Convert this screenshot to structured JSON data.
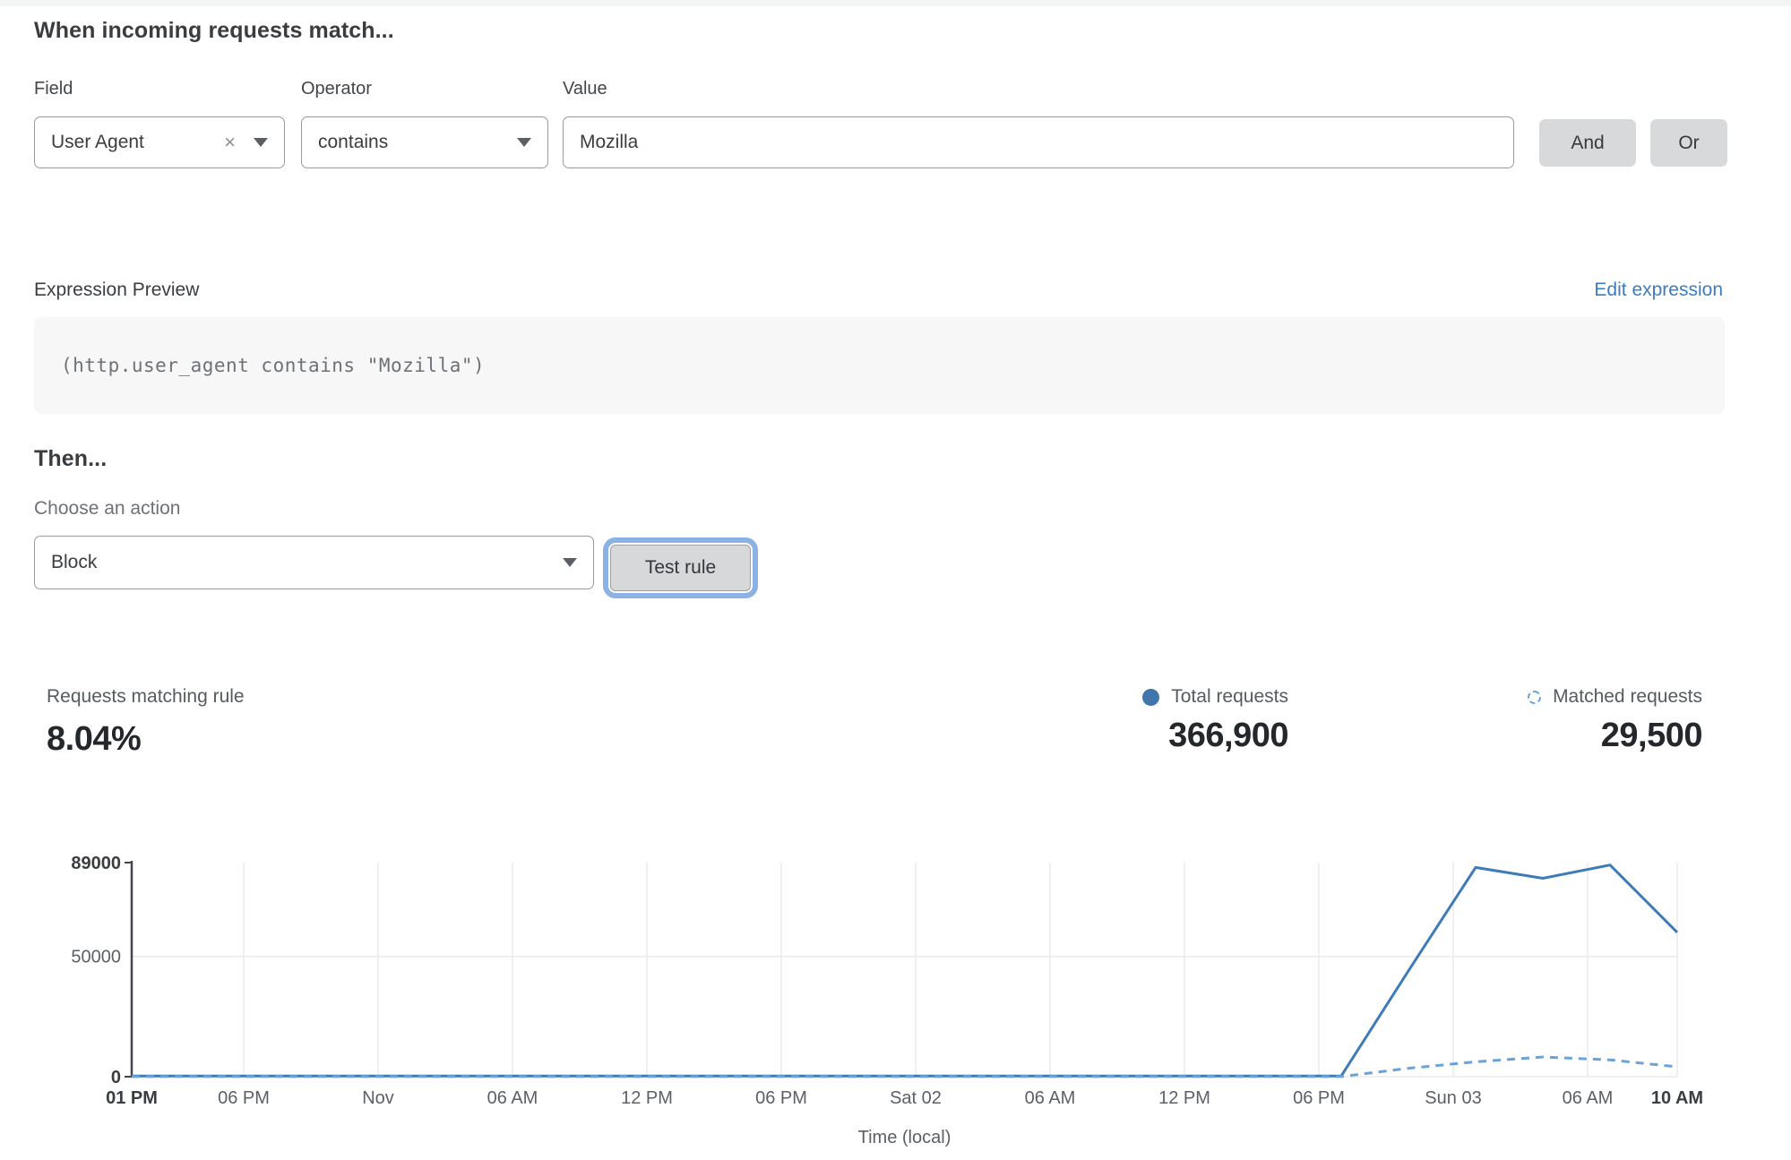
{
  "rule_builder": {
    "heading": "When incoming requests match...",
    "field": {
      "label": "Field",
      "selected": "User Agent",
      "clear_icon": "×"
    },
    "operator": {
      "label": "Operator",
      "selected": "contains"
    },
    "value": {
      "label": "Value",
      "text": "Mozilla"
    },
    "and_button": "And",
    "or_button": "Or"
  },
  "expression_preview": {
    "label": "Expression Preview",
    "edit_link": "Edit expression",
    "code": "(http.user_agent contains \"Mozilla\")"
  },
  "action_section": {
    "heading": "Then...",
    "choose_label": "Choose an action",
    "selected_action": "Block",
    "test_button": "Test rule"
  },
  "stats": {
    "matching_label": "Requests matching rule",
    "matching_value": "8.04%",
    "total_label": "Total requests",
    "total_value": "366,900",
    "matched_label": "Matched requests",
    "matched_value": "29,500"
  },
  "colors": {
    "total_line": "#3d7cb8",
    "matched_line": "#6ba3d9",
    "link_blue": "#3b7cbf",
    "grid": "#ebebeb",
    "axis": "#44474c"
  },
  "chart_data": {
    "type": "line",
    "title": "",
    "xlabel": "Time (local)",
    "ylabel": "",
    "ylim": [
      0,
      89000
    ],
    "yticks": [
      {
        "v": 0,
        "label": "0",
        "bold": true
      },
      {
        "v": 50000,
        "label": "50000",
        "bold": false
      },
      {
        "v": 89000,
        "label": "89000",
        "bold": true
      }
    ],
    "x": [
      0,
      3,
      6,
      9,
      12,
      15,
      18,
      21,
      24,
      27,
      30,
      33,
      36,
      39,
      42,
      45,
      48,
      51,
      54,
      57,
      60,
      63,
      66,
      69
    ],
    "xticks": [
      {
        "h": 0,
        "label": "01 PM",
        "bold": true
      },
      {
        "h": 5,
        "label": "06 PM",
        "bold": false
      },
      {
        "h": 11,
        "label": "Nov",
        "bold": false
      },
      {
        "h": 17,
        "label": "06 AM",
        "bold": false
      },
      {
        "h": 23,
        "label": "12 PM",
        "bold": false
      },
      {
        "h": 29,
        "label": "06 PM",
        "bold": false
      },
      {
        "h": 35,
        "label": "Sat 02",
        "bold": false
      },
      {
        "h": 41,
        "label": "06 AM",
        "bold": false
      },
      {
        "h": 47,
        "label": "12 PM",
        "bold": false
      },
      {
        "h": 53,
        "label": "06 PM",
        "bold": false
      },
      {
        "h": 59,
        "label": "Sun 03",
        "bold": false
      },
      {
        "h": 65,
        "label": "06 AM",
        "bold": false
      },
      {
        "h": 69,
        "label": "10 AM",
        "bold": true
      }
    ],
    "grid": "vertical lines at x ticks, horizontal line at 50000 and baseline",
    "legend_position": "top-right stats row",
    "series": [
      {
        "name": "Total requests",
        "line_style": "solid",
        "color": "#3d7cb8",
        "values": [
          280,
          280,
          280,
          280,
          280,
          280,
          280,
          280,
          280,
          280,
          280,
          280,
          280,
          280,
          280,
          280,
          280,
          280,
          280,
          44000,
          87000,
          82500,
          88000,
          60000
        ]
      },
      {
        "name": "Matched requests",
        "line_style": "dashed",
        "color": "#6ba3d9",
        "values": [
          25,
          25,
          25,
          25,
          25,
          25,
          25,
          25,
          25,
          25,
          25,
          25,
          25,
          25,
          25,
          25,
          25,
          25,
          25,
          3500,
          6200,
          8200,
          7000,
          4100
        ]
      }
    ]
  }
}
